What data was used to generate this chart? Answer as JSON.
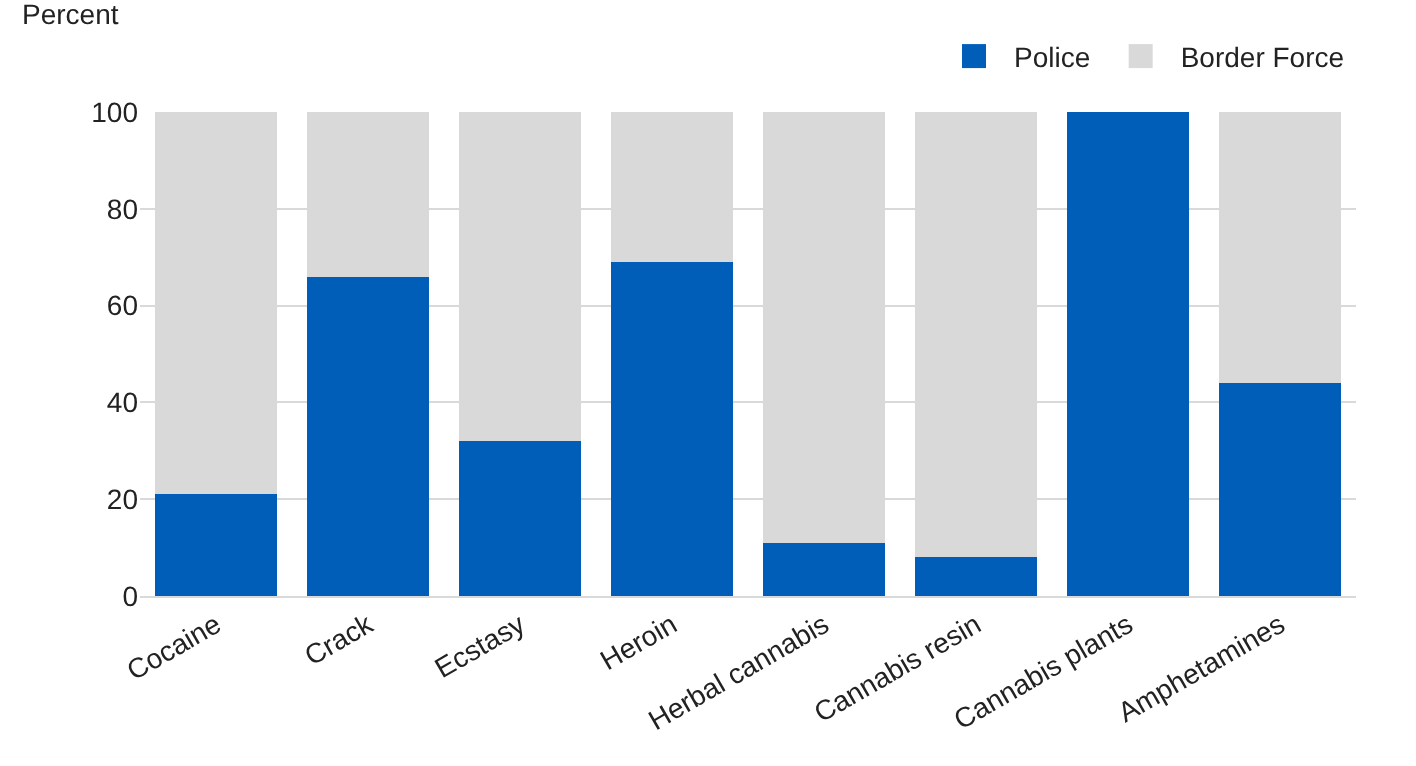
{
  "chart_data": {
    "type": "bar",
    "stacked": true,
    "ylabel": "Percent",
    "categories": [
      "Cocaine",
      "Crack",
      "Ecstasy",
      "Heroin",
      "Herbal cannabis",
      "Cannabis resin",
      "Cannabis plants",
      "Amphetamines"
    ],
    "series": [
      {
        "name": "Police",
        "color": "#005eb8",
        "values": [
          21,
          66,
          32,
          69,
          11,
          8,
          100,
          44
        ]
      },
      {
        "name": "Border Force",
        "color": "#d9d9d9",
        "values": [
          79,
          34,
          68,
          31,
          89,
          92,
          0,
          56
        ]
      }
    ],
    "ylim": [
      0,
      100
    ],
    "yticks": [
      0,
      20,
      40,
      60,
      80,
      100
    ],
    "grid": "y",
    "legend": "top right"
  }
}
